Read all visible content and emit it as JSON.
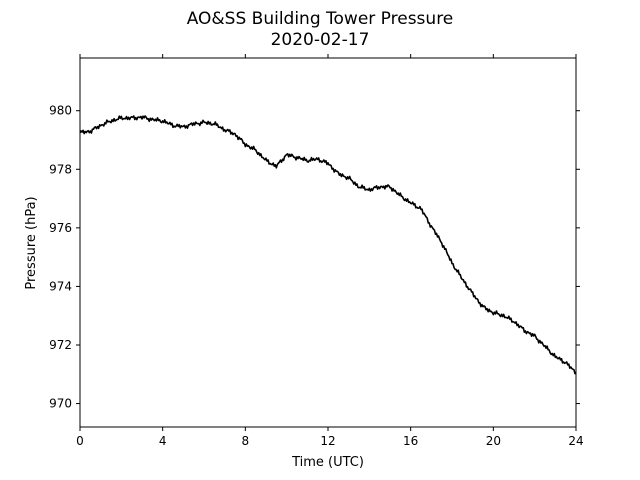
{
  "chart_data": {
    "type": "line",
    "title": "AO&SS Building Tower Pressure",
    "subtitle": "2020-02-17",
    "xlabel": "Time (UTC)",
    "ylabel": "Pressure (hPa)",
    "xlim": [
      0,
      24
    ],
    "ylim": [
      969.2,
      981.8
    ],
    "xticks": [
      0,
      4,
      8,
      12,
      16,
      20,
      24
    ],
    "yticks": [
      970,
      972,
      974,
      976,
      978,
      980
    ],
    "grid": false,
    "legend": "none",
    "line_color": "#000000",
    "series": [
      {
        "x": [
          0,
          0.5,
          1,
          1.5,
          2,
          2.5,
          3,
          3.5,
          4,
          4.5,
          5,
          5.5,
          6,
          6.5,
          7,
          7.5,
          8,
          8.5,
          9,
          9.5,
          10,
          10.5,
          11,
          11.5,
          12,
          12.5,
          13,
          13.5,
          14,
          14.5,
          15,
          15.5,
          16,
          16.5,
          17,
          17.5,
          18,
          18.5,
          19,
          19.5,
          20,
          20.5,
          21,
          21.5,
          22,
          22.5,
          23,
          23.5,
          24
        ],
        "y": [
          979.25,
          979.3,
          979.5,
          979.65,
          979.75,
          979.75,
          979.78,
          979.7,
          979.65,
          979.5,
          979.45,
          979.55,
          979.6,
          979.55,
          979.35,
          979.2,
          978.85,
          978.65,
          978.3,
          978.1,
          978.5,
          978.4,
          978.3,
          978.35,
          978.2,
          977.85,
          977.7,
          977.4,
          977.3,
          977.4,
          977.4,
          977.1,
          976.85,
          976.65,
          976.05,
          975.5,
          974.8,
          974.25,
          973.75,
          973.3,
          973.1,
          973.0,
          972.8,
          972.5,
          972.3,
          971.95,
          971.6,
          971.4,
          971.05
        ]
      }
    ]
  }
}
